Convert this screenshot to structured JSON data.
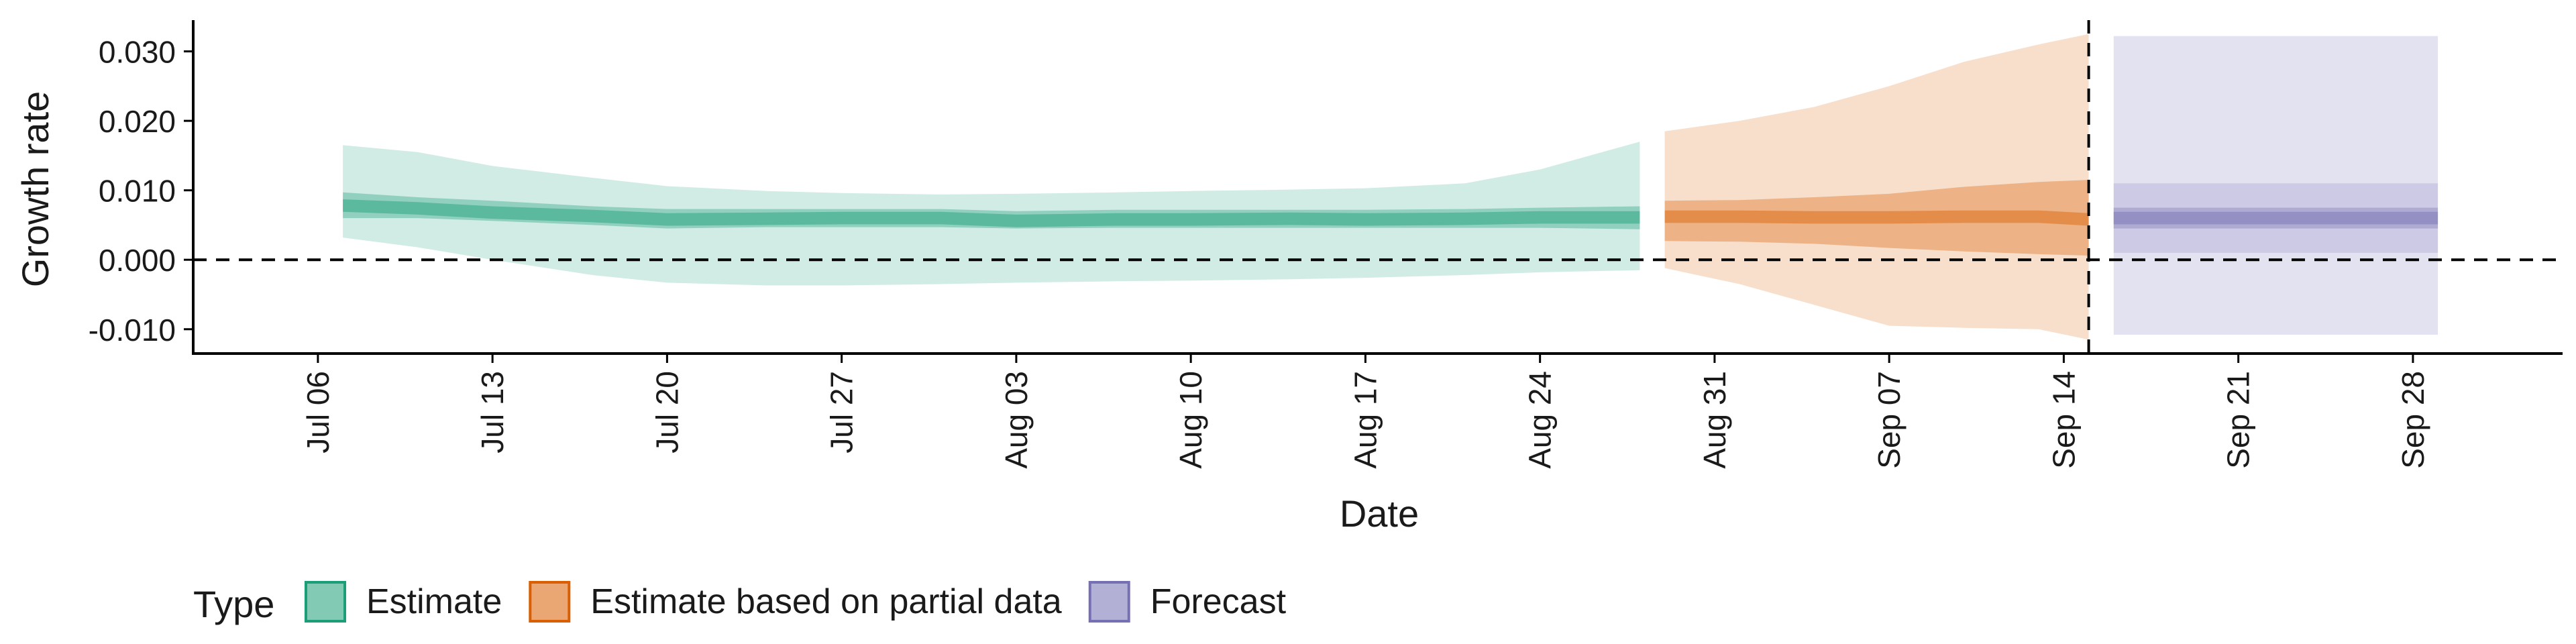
{
  "chart_data": {
    "type": "area",
    "title": "",
    "xlabel": "Date",
    "ylabel": "Growth rate",
    "ylim": [
      -0.0135,
      0.0345
    ],
    "xlim": [
      "2020-07-01",
      "2020-10-04"
    ],
    "grid": false,
    "legend_position": "bottom-left",
    "legend_title": "Type",
    "x_ticks": [
      "2020-07-06",
      "2020-07-13",
      "2020-07-20",
      "2020-07-27",
      "2020-08-03",
      "2020-08-10",
      "2020-08-17",
      "2020-08-24",
      "2020-08-31",
      "2020-09-07",
      "2020-09-14",
      "2020-09-21",
      "2020-09-28"
    ],
    "x_tick_labels": [
      "Jul 06",
      "Jul 13",
      "Jul 20",
      "Jul 27",
      "Aug 03",
      "Aug 10",
      "Aug 17",
      "Aug 24",
      "Aug 31",
      "Sep 07",
      "Sep 14",
      "Sep 21",
      "Sep 28"
    ],
    "y_ticks": [
      -0.01,
      0.0,
      0.01,
      0.02,
      0.03
    ],
    "y_tick_labels": [
      "-0.010",
      "0.000",
      "0.010",
      "0.020",
      "0.030"
    ],
    "reference_lines": [
      {
        "axis": "y",
        "value": 0.0,
        "style": "dashed"
      },
      {
        "axis": "x",
        "value": "2020-09-15",
        "style": "dashed"
      }
    ],
    "series": [
      {
        "name": "Estimate",
        "color": "#1b9e77",
        "x": [
          "2020-07-07",
          "2020-07-10",
          "2020-07-13",
          "2020-07-17",
          "2020-07-20",
          "2020-07-24",
          "2020-07-27",
          "2020-07-31",
          "2020-08-03",
          "2020-08-07",
          "2020-08-10",
          "2020-08-14",
          "2020-08-17",
          "2020-08-21",
          "2020-08-24",
          "2020-08-28"
        ],
        "median": [
          0.0078,
          0.0074,
          0.0068,
          0.0063,
          0.0058,
          0.0059,
          0.006,
          0.006,
          0.0056,
          0.0058,
          0.0058,
          0.0059,
          0.0058,
          0.0059,
          0.0061,
          0.0061
        ],
        "lower_50": [
          0.006,
          0.006,
          0.0056,
          0.005,
          0.0045,
          0.0047,
          0.0047,
          0.0047,
          0.0045,
          0.0046,
          0.0046,
          0.0046,
          0.0046,
          0.0046,
          0.0046,
          0.0044
        ],
        "upper_50": [
          0.0097,
          0.009,
          0.0085,
          0.0077,
          0.0073,
          0.0073,
          0.0073,
          0.0073,
          0.007,
          0.0072,
          0.0072,
          0.0072,
          0.0072,
          0.0073,
          0.0075,
          0.0077
        ],
        "lower_90": [
          0.0032,
          0.0018,
          0.0,
          -0.0022,
          -0.0033,
          -0.0037,
          -0.0037,
          -0.0035,
          -0.0033,
          -0.0031,
          -0.003,
          -0.0028,
          -0.0026,
          -0.0022,
          -0.0018,
          -0.0015
        ],
        "upper_90": [
          0.0165,
          0.0155,
          0.0135,
          0.0118,
          0.0106,
          0.0099,
          0.0096,
          0.0094,
          0.0095,
          0.0097,
          0.0099,
          0.0101,
          0.0103,
          0.011,
          0.013,
          0.017
        ]
      },
      {
        "name": "Estimate based on partial data",
        "color": "#d95f02",
        "x": [
          "2020-08-29",
          "2020-09-01",
          "2020-09-04",
          "2020-09-07",
          "2020-09-10",
          "2020-09-13",
          "2020-09-15"
        ],
        "median": [
          0.0062,
          0.0062,
          0.0061,
          0.0061,
          0.0062,
          0.0062,
          0.0058
        ],
        "lower_50": [
          0.0027,
          0.0026,
          0.0023,
          0.0017,
          0.0012,
          0.0008,
          0.0006
        ],
        "upper_50": [
          0.0085,
          0.0086,
          0.009,
          0.0095,
          0.0105,
          0.0112,
          0.0115
        ],
        "lower_90": [
          -0.0012,
          -0.0035,
          -0.0065,
          -0.0095,
          -0.0098,
          -0.01,
          -0.0115
        ],
        "upper_90": [
          0.0185,
          0.02,
          0.022,
          0.025,
          0.0285,
          0.031,
          0.0325
        ]
      },
      {
        "name": "Forecast",
        "color": "#7570b3",
        "x": [
          "2020-09-16",
          "2020-09-29"
        ],
        "median": [
          0.006,
          0.006
        ],
        "lower_50": [
          0.0045,
          0.0045
        ],
        "upper_50": [
          0.0075,
          0.0075
        ],
        "lower_75": [
          0.001,
          0.001
        ],
        "upper_75": [
          0.011,
          0.011
        ],
        "lower_90": [
          -0.0108,
          -0.0108
        ],
        "upper_90": [
          0.0322,
          0.0322
        ]
      }
    ]
  }
}
